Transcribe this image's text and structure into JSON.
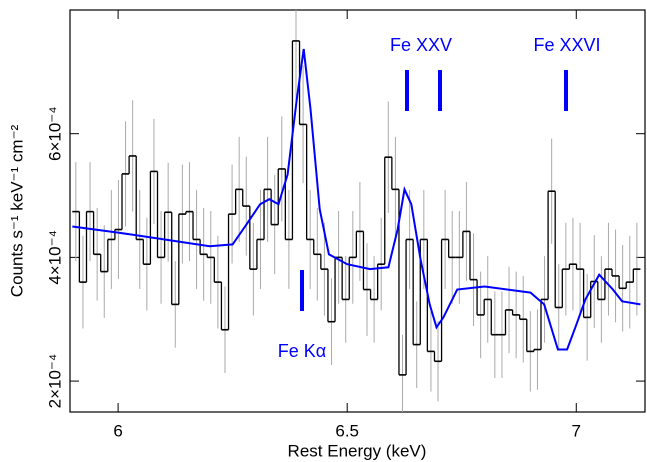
{
  "chart_data": {
    "type": "histogram",
    "xlabel": "Rest Energy (keV)",
    "ylabel": "Counts s⁻¹ keV⁻¹ cm⁻²",
    "xlim": [
      5.895,
      7.15
    ],
    "ylim": [
      0.00015,
      0.0008
    ],
    "xticks": [
      6,
      6.5,
      7
    ],
    "yticks": [
      {
        "value": 0.0002,
        "label": "2×10⁻⁴"
      },
      {
        "value": 0.0004,
        "label": "4×10⁻⁴"
      },
      {
        "value": 0.0006,
        "label": "6×10⁻⁴"
      }
    ],
    "color": "#000000",
    "error_color": "#aaaaaa",
    "bins": [
      5.9,
      5.9155,
      5.931,
      5.9465,
      5.962,
      5.9775,
      5.993,
      6.0085,
      6.024,
      6.0395,
      6.055,
      6.0705,
      6.086,
      6.1015,
      6.117,
      6.1325,
      6.148,
      6.1635,
      6.179,
      6.1945,
      6.21,
      6.2255,
      6.241,
      6.2565,
      6.272,
      6.2875,
      6.303,
      6.3185,
      6.334,
      6.3495,
      6.365,
      6.3805,
      6.396,
      6.4115,
      6.427,
      6.4425,
      6.458,
      6.4735,
      6.489,
      6.5045,
      6.52,
      6.5355,
      6.551,
      6.5665,
      6.582,
      6.5975,
      6.613,
      6.6285,
      6.644,
      6.6595,
      6.675,
      6.6905,
      6.706,
      6.7215,
      6.737,
      6.7525,
      6.768,
      6.7835,
      6.799,
      6.8145,
      6.83,
      6.8455,
      6.861,
      6.8765,
      6.892,
      6.9075,
      6.923,
      6.9385,
      6.954,
      6.9695,
      6.985,
      7.0005,
      7.016,
      7.0315,
      7.047,
      7.0625,
      7.078,
      7.0935,
      7.109,
      7.1245,
      7.14
    ],
    "values": [
      0.000474,
      0.00036,
      0.000474,
      0.000405,
      0.000377,
      0.000429,
      0.000445,
      0.000535,
      0.000564,
      0.000429,
      0.000389,
      0.000539,
      0.0004,
      0.000473,
      0.000324,
      0.00047,
      0.000474,
      0.000429,
      0.000405,
      0.0004,
      0.00036,
      0.000283,
      0.00047,
      0.00051,
      0.000483,
      0.000381,
      0.000429,
      0.00051,
      0.000453,
      0.000543,
      0.000429,
      0.00075,
      0.000615,
      0.000429,
      0.000405,
      0.000381,
      0.000296,
      0.0004,
      0.000332,
      0.0004,
      0.000442,
      0.000348,
      0.000332,
      0.000389,
      0.000562,
      0.00051,
      0.00021,
      0.000429,
      0.000259,
      0.000429,
      0.000248,
      0.000232,
      0.000429,
      0.0004,
      0.0004,
      0.000442,
      0.000364,
      0.000307,
      0.000332,
      0.000275,
      0.000275,
      0.000315,
      0.000307,
      0.0003,
      0.000248,
      0.000251,
      0.000332,
      0.000507,
      0.000319,
      0.000381,
      0.000389,
      0.000381,
      0.000303,
      0.000361,
      0.000332,
      0.000381,
      0.00037,
      0.00035,
      0.00036,
      0.000381
    ],
    "errors": [
      8e-05,
      7.5e-05,
      8e-05,
      7.5e-05,
      7.5e-05,
      8e-05,
      8e-05,
      8.5e-05,
      9e-05,
      8e-05,
      7.5e-05,
      8.5e-05,
      7.5e-05,
      8e-05,
      7e-05,
      8e-05,
      8e-05,
      8e-05,
      7.5e-05,
      7.5e-05,
      7.5e-05,
      7e-05,
      8e-05,
      8.5e-05,
      8e-05,
      7.5e-05,
      8e-05,
      8.5e-05,
      8e-05,
      8.5e-05,
      8e-05,
      0.0001,
      9.5e-05,
      8e-05,
      7.5e-05,
      7.5e-05,
      7e-05,
      7.5e-05,
      7e-05,
      7.5e-05,
      8e-05,
      7.5e-05,
      7e-05,
      7.5e-05,
      9e-05,
      8.5e-05,
      6.5e-05,
      8e-05,
      7e-05,
      8e-05,
      6.5e-05,
      6.5e-05,
      8e-05,
      7.5e-05,
      7.5e-05,
      8e-05,
      7.5e-05,
      7e-05,
      7e-05,
      7e-05,
      7e-05,
      7e-05,
      7e-05,
      7e-05,
      6.5e-05,
      6.5e-05,
      7e-05,
      8.5e-05,
      7e-05,
      7.5e-05,
      7.5e-05,
      7.5e-05,
      7e-05,
      7.5e-05,
      7e-05,
      7.5e-05,
      7.5e-05,
      7e-05,
      7.5e-05,
      7.5e-05
    ],
    "model": {
      "color": "#0000ff",
      "x": [
        5.9,
        6.0,
        6.1,
        6.2,
        6.25,
        6.28,
        6.31,
        6.33,
        6.35,
        6.37,
        6.39,
        6.405,
        6.42,
        6.44,
        6.46,
        6.5,
        6.55,
        6.59,
        6.61,
        6.625,
        6.64,
        6.66,
        6.68,
        6.695,
        6.71,
        6.74,
        6.8,
        6.9,
        6.93,
        6.96,
        6.98,
        7.0,
        7.02,
        7.05,
        7.08,
        7.1,
        7.14
      ],
      "values": [
        0.00045,
        0.00044,
        0.000429,
        0.000418,
        0.000421,
        0.000453,
        0.000486,
        0.000494,
        0.000486,
        0.000534,
        0.000656,
        0.000737,
        0.00064,
        0.000478,
        0.000405,
        0.000389,
        0.000381,
        0.000384,
        0.000445,
        0.00051,
        0.000486,
        0.000397,
        0.000324,
        0.000287,
        0.000303,
        0.000348,
        0.000353,
        0.000343,
        0.000324,
        0.000251,
        0.000251,
        0.000291,
        0.000332,
        0.000372,
        0.000348,
        0.000329,
        0.000324
      ]
    },
    "annotations": [
      {
        "text": "Fe XXV"
      },
      {
        "text": "Fe XXVI"
      },
      {
        "text": "Fe Kα"
      }
    ]
  }
}
